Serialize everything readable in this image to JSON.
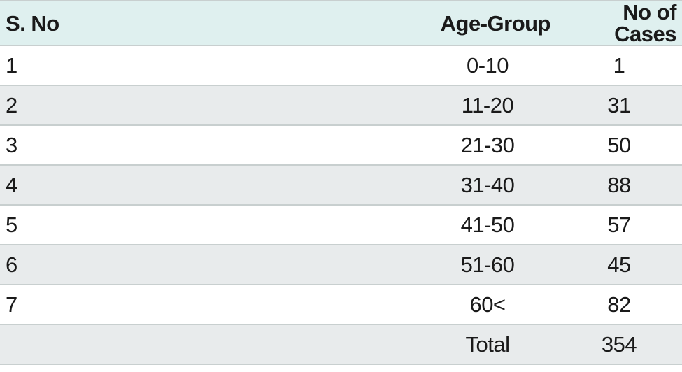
{
  "table": {
    "headers": [
      "S. No",
      "Age-Group",
      "No of Cases"
    ],
    "rows": [
      [
        "1",
        "0-10",
        "1"
      ],
      [
        "2",
        "11-20",
        "31"
      ],
      [
        "3",
        "21-30",
        "50"
      ],
      [
        "4",
        "31-40",
        "88"
      ],
      [
        "5",
        "41-50",
        "57"
      ],
      [
        "6",
        "51-60",
        "45"
      ],
      [
        "7",
        "60<",
        "82"
      ],
      [
        "",
        "Total",
        "354"
      ]
    ]
  }
}
